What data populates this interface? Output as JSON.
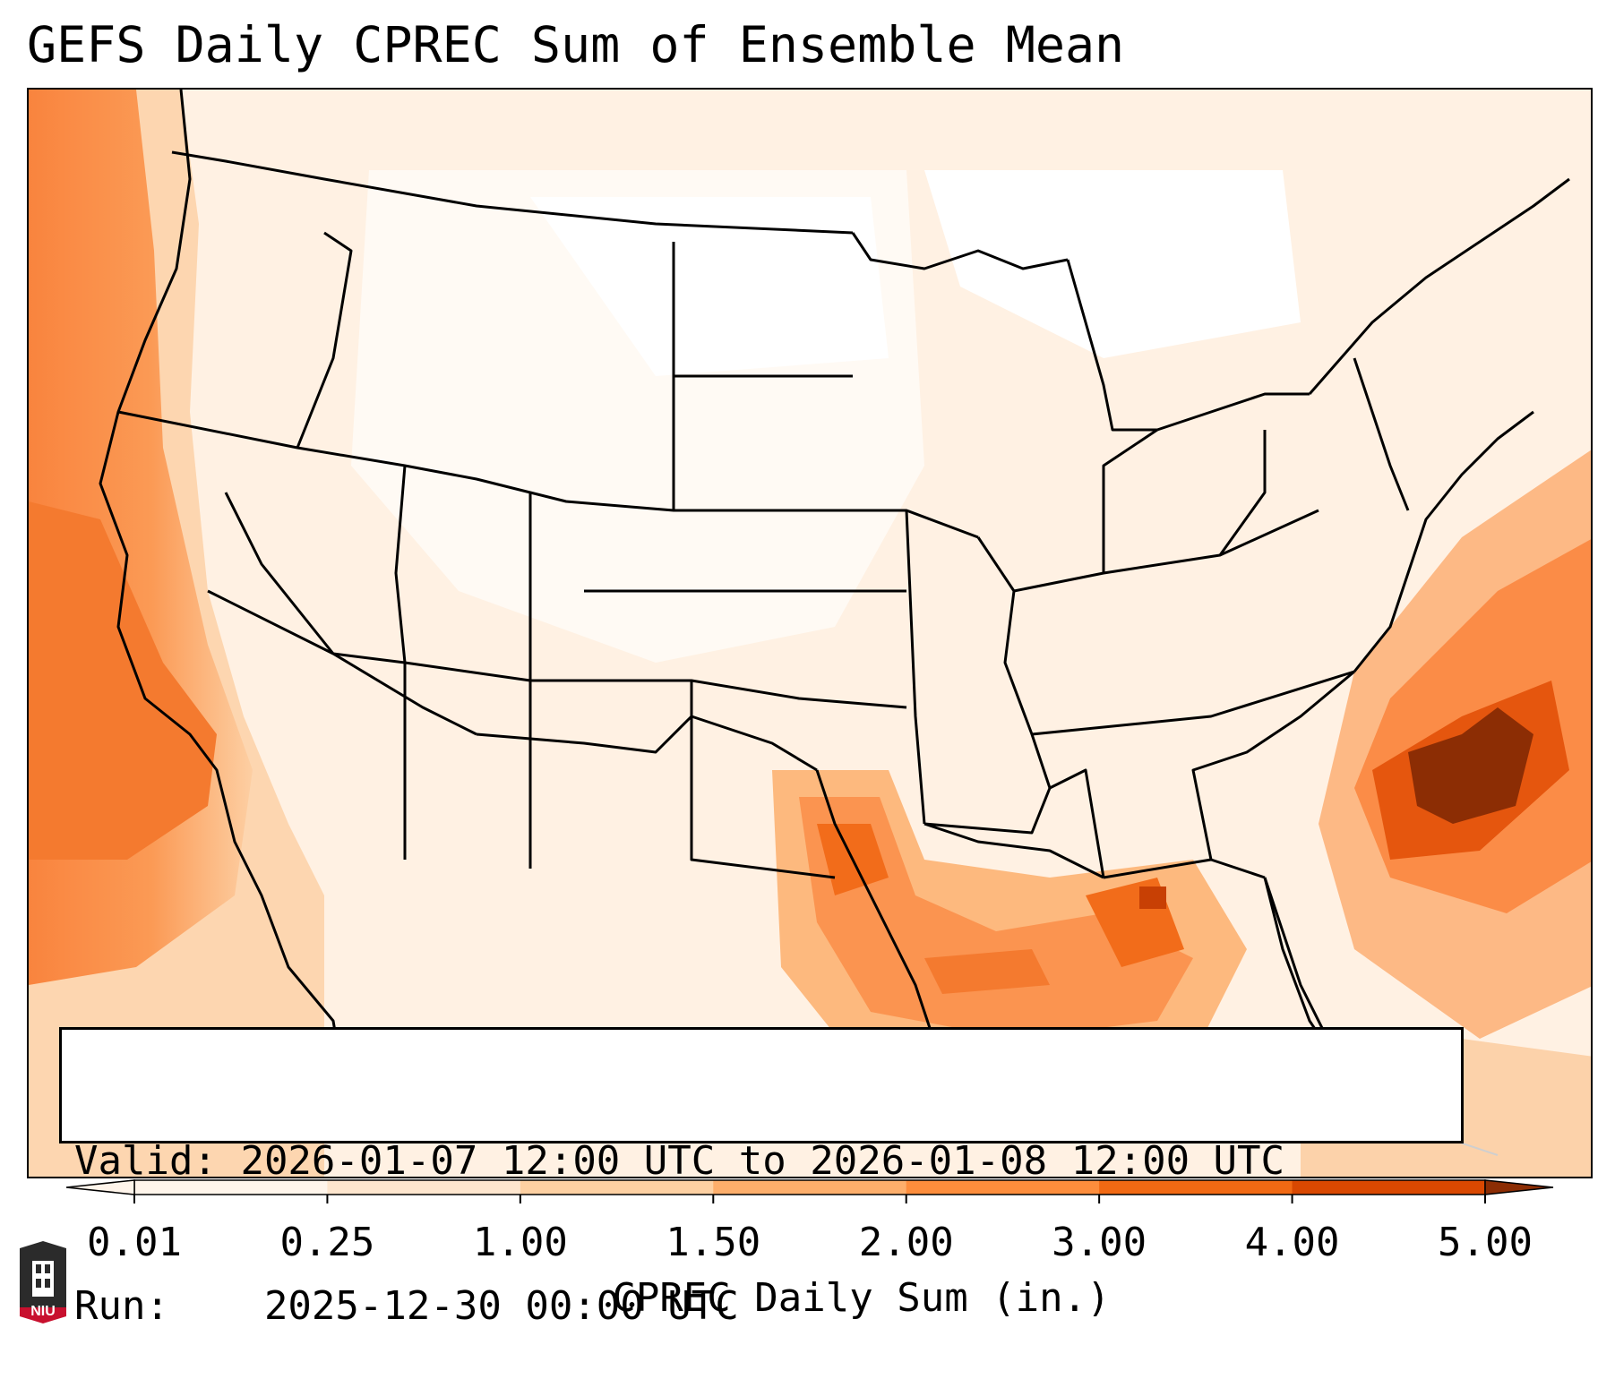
{
  "title": "GEFS Daily CPREC Sum of Ensemble Mean",
  "valid_label": "Valid:",
  "valid_range": "2026-01-07 12:00 UTC to 2026-01-08 12:00 UTC",
  "run_label": "Run:",
  "run_time": "2025-12-30 00:00 UTC",
  "colorbar": {
    "label": "CPREC Daily Sum (in.)",
    "ticks": [
      "0.01",
      "0.25",
      "1.00",
      "1.50",
      "2.00",
      "3.00",
      "4.00",
      "5.00"
    ],
    "colors": [
      "#fff5eb",
      "#fee6ce",
      "#fdd0a2",
      "#fdae6b",
      "#fd8d3c",
      "#f16913",
      "#d94801",
      "#8c2d04"
    ]
  },
  "logo_text": "NIU",
  "colors": {
    "light": "#fff5eb",
    "pale": "#fee6ce",
    "sand": "#fdd0a2",
    "orange": "#fd8d3c",
    "deep": "#d94801",
    "max": "#8c2d04"
  }
}
